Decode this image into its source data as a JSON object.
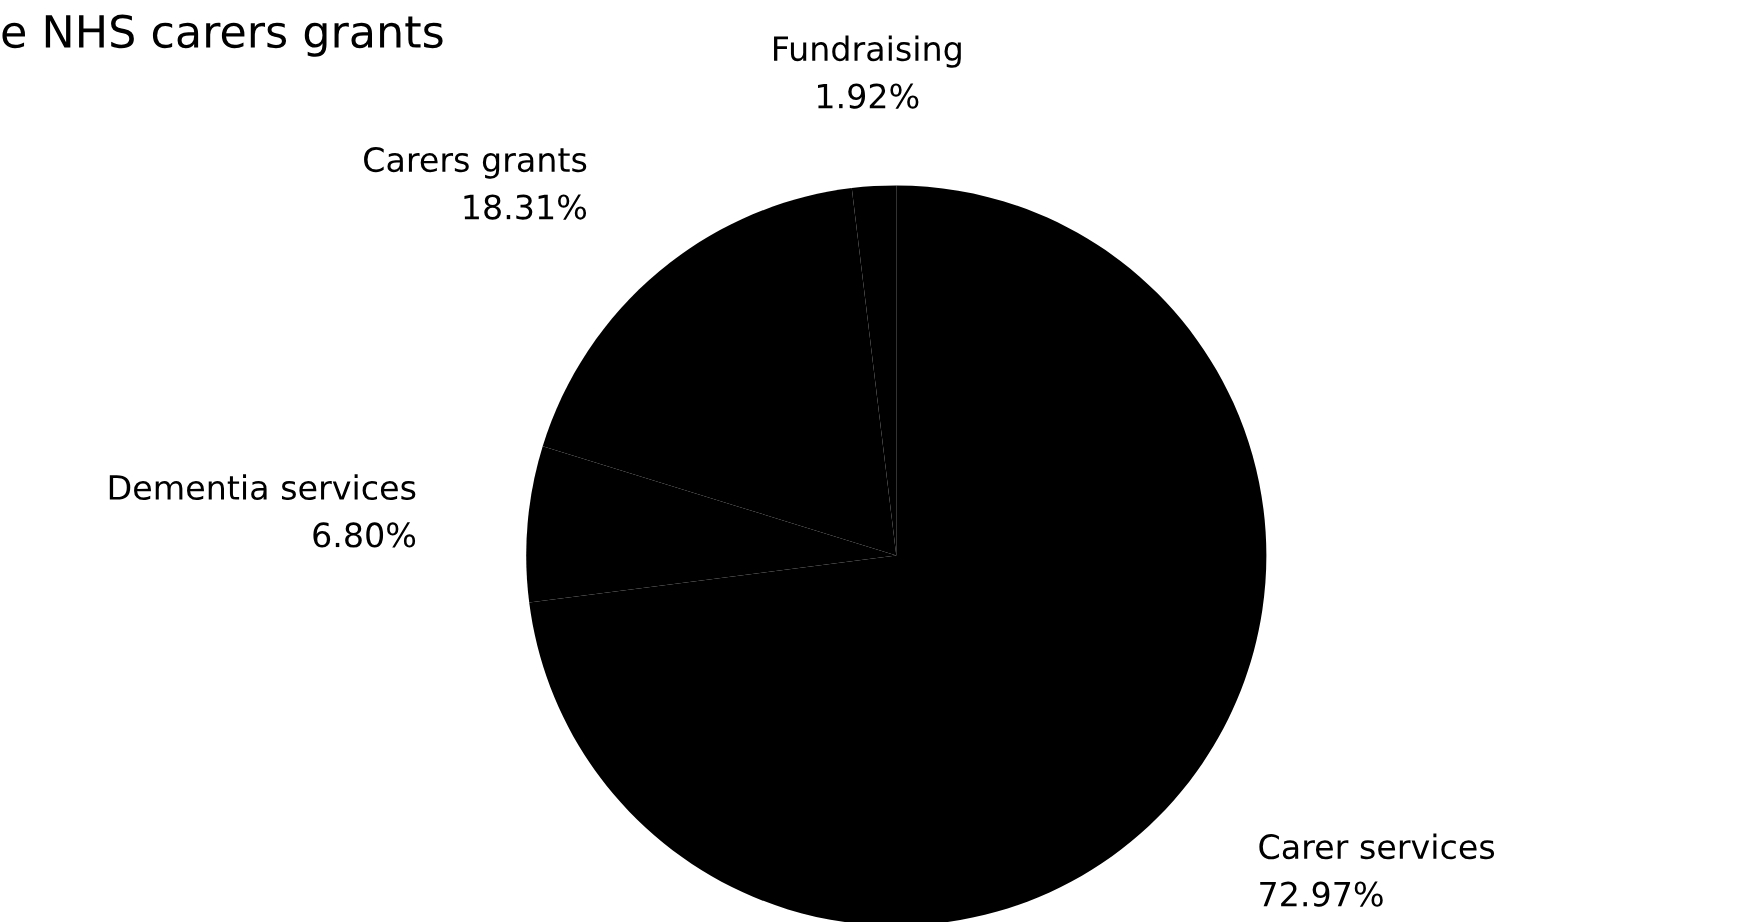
{
  "chart_data": {
    "type": "pie",
    "title": "e NHS carers grants",
    "categories": [
      "Carer services",
      "Dementia services",
      "Carers grants",
      "Fundraising"
    ],
    "values": [
      72.97,
      6.8,
      18.31,
      1.92
    ],
    "colors": [
      "#000000",
      "#000000",
      "#000000",
      "#000000"
    ],
    "value_labels": [
      "72.97%",
      "6.80%",
      "18.31%",
      "1.92%"
    ],
    "legend": false
  }
}
